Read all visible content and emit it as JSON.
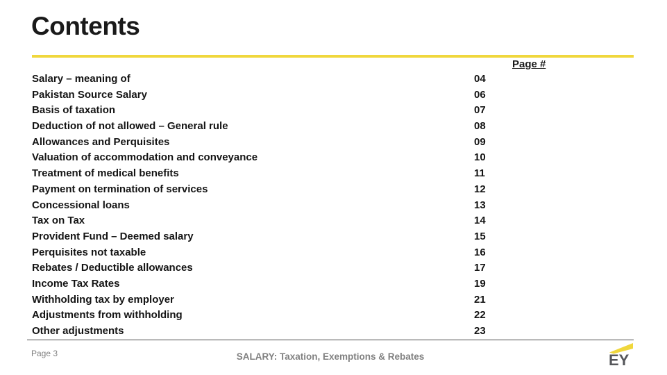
{
  "slide": {
    "title": "Contents",
    "page_number_header": "Page #",
    "footer": {
      "page_label": "Page 3",
      "deck_title": "SALARY: Taxation, Exemptions & Rebates"
    },
    "logo": {
      "text": "EY"
    },
    "colors": {
      "accent_yellow": "#F0D73C",
      "title_black": "#1A1A1A",
      "divider_gray": "#4A4A4A",
      "footer_gray": "#808080",
      "logo_gray": "#55565A"
    }
  },
  "toc": {
    "items": [
      {
        "label": "Salary – meaning of",
        "page": "04"
      },
      {
        "label": "Pakistan Source Salary",
        "page": "06"
      },
      {
        "label": "Basis of taxation",
        "page": "07"
      },
      {
        "label": "Deduction of not allowed – General rule",
        "page": "08"
      },
      {
        "label": "Allowances and Perquisites",
        "page": "09"
      },
      {
        "label": "Valuation of accommodation and conveyance",
        "page": "10"
      },
      {
        "label": "Treatment of medical benefits",
        "page": "11"
      },
      {
        "label": "Payment on termination of services",
        "page": "12"
      },
      {
        "label": "Concessional loans",
        "page": "13"
      },
      {
        "label": "Tax on Tax",
        "page": "14"
      },
      {
        "label": "Provident Fund – Deemed salary",
        "page": "15"
      },
      {
        "label": "Perquisites not taxable",
        "page": "16"
      },
      {
        "label": "Rebates / Deductible allowances",
        "page": "17"
      },
      {
        "label": "Income Tax Rates",
        "page": "19"
      },
      {
        "label": "Withholding tax by employer",
        "page": "21"
      },
      {
        "label": "Adjustments from withholding",
        "page": "22"
      },
      {
        "label": "Other adjustments",
        "page": "23"
      }
    ]
  }
}
